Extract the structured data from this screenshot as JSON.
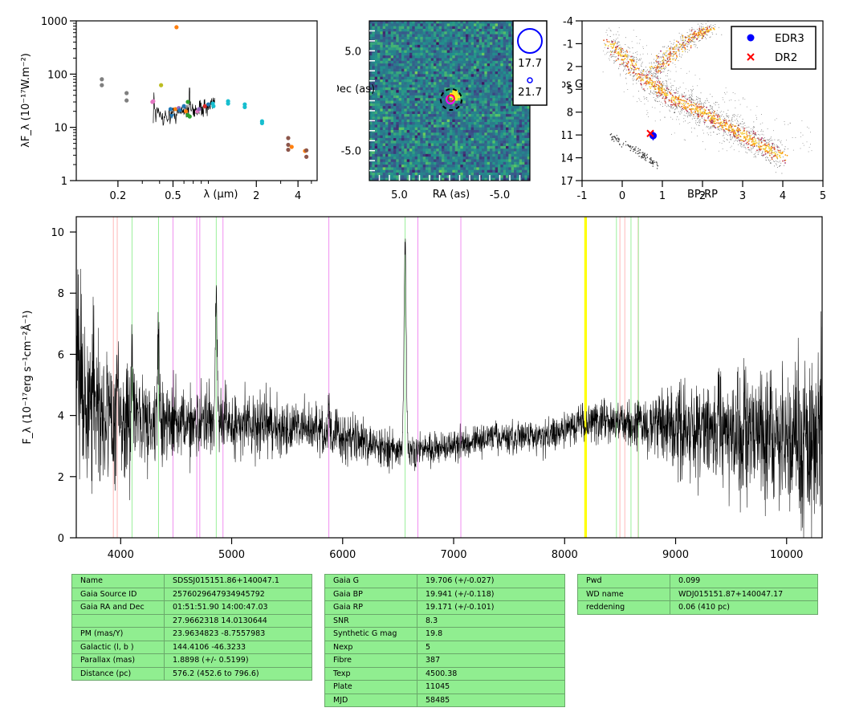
{
  "colors": {
    "sed_colors": [
      "#7f7f7f",
      "#bcbd22",
      "#ff7f0e",
      "#1f77b4",
      "#2ca02c",
      "#e377c2",
      "#9467bd",
      "#8c564b",
      "#17becf",
      "#d62728"
    ],
    "line_colors": {
      "pink": "#ffb0b0",
      "green": "#90ee90",
      "magenta": "#ee82ee",
      "yellow": "#ffff00"
    },
    "table_bg": "#90ee90",
    "edr3": "#0000ff",
    "dr2": "#ff0000",
    "target_circle": "#ff00ff"
  },
  "chart_data": [
    {
      "type": "scatter",
      "id": "sed",
      "xlabel": "λ (μm)",
      "ylabel": "λF_λ (10⁻¹⁷W.m⁻²)",
      "xscale": "log",
      "yscale": "log",
      "xlim": [
        0.1,
        5.5
      ],
      "ylim": [
        1,
        1000
      ],
      "xticks": [
        0.2,
        0.5,
        2,
        4
      ],
      "yticks": [
        1,
        10,
        100,
        1000
      ],
      "points": [
        {
          "x": 0.153,
          "y": 80,
          "c": 0
        },
        {
          "x": 0.153,
          "y": 62,
          "c": 0
        },
        {
          "x": 0.231,
          "y": 44,
          "c": 0
        },
        {
          "x": 0.231,
          "y": 32,
          "c": 0
        },
        {
          "x": 0.36,
          "y": 31,
          "c": 5
        },
        {
          "x": 0.355,
          "y": 30,
          "c": 5
        },
        {
          "x": 0.41,
          "y": 62,
          "c": 1
        },
        {
          "x": 0.48,
          "y": 22,
          "c": 3
        },
        {
          "x": 0.49,
          "y": 16,
          "c": 3
        },
        {
          "x": 0.52,
          "y": 22,
          "c": 2
        },
        {
          "x": 0.55,
          "y": 23,
          "c": 6
        },
        {
          "x": 0.56,
          "y": 21,
          "c": 3
        },
        {
          "x": 0.6,
          "y": 25,
          "c": 3
        },
        {
          "x": 0.62,
          "y": 20,
          "c": 2
        },
        {
          "x": 0.64,
          "y": 30,
          "c": 4
        },
        {
          "x": 0.64,
          "y": 17,
          "c": 4
        },
        {
          "x": 0.66,
          "y": 16,
          "c": 4
        },
        {
          "x": 0.75,
          "y": 20,
          "c": 5
        },
        {
          "x": 0.77,
          "y": 22,
          "c": 6
        },
        {
          "x": 0.85,
          "y": 25,
          "c": 9
        },
        {
          "x": 0.9,
          "y": 27,
          "c": 3
        },
        {
          "x": 0.97,
          "y": 28,
          "c": 8
        },
        {
          "x": 0.98,
          "y": 25,
          "c": 8
        },
        {
          "x": 1.25,
          "y": 31,
          "c": 8
        },
        {
          "x": 1.25,
          "y": 28,
          "c": 8
        },
        {
          "x": 1.65,
          "y": 27,
          "c": 8
        },
        {
          "x": 1.65,
          "y": 24,
          "c": 8
        },
        {
          "x": 2.2,
          "y": 13,
          "c": 8
        },
        {
          "x": 2.2,
          "y": 12,
          "c": 8
        },
        {
          "x": 3.4,
          "y": 6.3,
          "c": 7
        },
        {
          "x": 3.4,
          "y": 4.7,
          "c": 7
        },
        {
          "x": 3.4,
          "y": 3.8,
          "c": 7
        },
        {
          "x": 3.6,
          "y": 4.3,
          "c": 2
        },
        {
          "x": 4.5,
          "y": 3.6,
          "c": 2
        },
        {
          "x": 4.6,
          "y": 3.7,
          "c": 7
        },
        {
          "x": 4.6,
          "y": 2.8,
          "c": 7
        },
        {
          "x": 0.53,
          "y": 760,
          "c": 2
        }
      ],
      "spectrum_envelope": {
        "x": [
          0.36,
          0.4,
          0.45,
          0.5,
          0.55,
          0.6,
          0.65,
          0.7,
          0.75,
          0.8,
          0.85,
          0.9,
          0.95,
          1.0
        ],
        "y": [
          22,
          17,
          16,
          18,
          19,
          22,
          24,
          20,
          22,
          24,
          25,
          23,
          26,
          28
        ]
      }
    },
    {
      "type": "heatmap",
      "id": "image-cutout",
      "xlabel": "RA (as)",
      "ylabel": "Dec\n(as)",
      "xlim": [
        8,
        -8
      ],
      "ylim": [
        -8,
        8
      ],
      "xticks": [
        5.0,
        -5.0
      ],
      "yticks": [
        5.0,
        -5.0
      ],
      "source": {
        "x": -0.5,
        "y": 0.5
      },
      "legend": {
        "entries": [
          "17.7",
          "21.7"
        ]
      }
    },
    {
      "type": "scatter",
      "id": "hr-diagram",
      "xlabel": "BP-RP",
      "ylabel": "Abs\nG",
      "xlim": [
        -1,
        5
      ],
      "ylim": [
        17,
        -4
      ],
      "xticks": [
        -1,
        0,
        1,
        2,
        3,
        4,
        5
      ],
      "yticks": [
        -4,
        -1,
        2,
        5,
        8,
        11,
        14,
        17
      ],
      "main_sequence": {
        "x": [
          -0.3,
          0.2,
          0.5,
          0.8,
          1.2,
          1.6,
          2.0,
          2.5,
          3.0,
          3.5,
          4.0
        ],
        "y": [
          -1,
          1.5,
          3.5,
          4.5,
          6,
          7,
          8,
          9.5,
          11,
          12.5,
          14
        ]
      },
      "giant_branch": {
        "x": [
          0.8,
          1.0,
          1.2,
          1.5,
          1.8,
          2.2
        ],
        "y": [
          2.5,
          1.5,
          0.5,
          -1,
          -2,
          -3
        ]
      },
      "white_dwarf_sequence": {
        "x": [
          -0.3,
          0.0,
          0.3,
          0.6,
          0.9
        ],
        "y": [
          11,
          12,
          13,
          14,
          15
        ]
      },
      "series": [
        {
          "name": "EDR3",
          "x": 0.77,
          "y": 11.1,
          "marker": "circle",
          "yerr": 0.6
        },
        {
          "name": "DR2",
          "x": 0.7,
          "y": 10.8,
          "marker": "x"
        }
      ]
    },
    {
      "type": "line",
      "id": "spectrum",
      "xlabel": "",
      "ylabel": "F_λ (10⁻¹⁷erg s⁻¹cm⁻²Å⁻¹)",
      "xlim": [
        3600,
        10320
      ],
      "ylim": [
        0,
        10.5
      ],
      "xticks": [
        4000,
        5000,
        6000,
        7000,
        8000,
        9000,
        10000
      ],
      "yticks": [
        0,
        2,
        4,
        6,
        8,
        10
      ],
      "base_continuum": {
        "x": [
          3600,
          3700,
          3800,
          4000,
          4300,
          4600,
          4900,
          5200,
          5500,
          5800,
          6100,
          6400,
          6700,
          7000,
          7300,
          7600,
          7900,
          8100,
          8300,
          8500,
          8800,
          9100,
          9400,
          9700,
          10000,
          10300
        ],
        "y": [
          4.8,
          4.4,
          4.1,
          3.9,
          3.8,
          3.7,
          3.7,
          3.7,
          3.6,
          3.5,
          3.3,
          2.9,
          2.8,
          3.0,
          3.3,
          3.3,
          3.4,
          3.7,
          3.8,
          3.7,
          3.7,
          3.6,
          3.5,
          3.5,
          3.3,
          3.3
        ]
      },
      "noise": {
        "x": [
          3600,
          4500,
          5500,
          6500,
          7500,
          8500,
          9000,
          9500,
          10000,
          10320
        ],
        "y": [
          1.4,
          0.6,
          0.45,
          0.3,
          0.25,
          0.35,
          0.7,
          0.9,
          1.1,
          1.6
        ]
      },
      "emission_lines": [
        {
          "x": 3970,
          "h": 2.0,
          "w": 6
        },
        {
          "x": 4101,
          "h": 2.2,
          "w": 7
        },
        {
          "x": 4340,
          "h": 3.3,
          "w": 7
        },
        {
          "x": 4861,
          "h": 4.0,
          "w": 8
        },
        {
          "x": 5876,
          "h": 0.9,
          "w": 6
        },
        {
          "x": 6563,
          "h": 6.6,
          "w": 10
        }
      ],
      "vlines": [
        {
          "x": 3934,
          "c": "pink"
        },
        {
          "x": 3969,
          "c": "pink"
        },
        {
          "x": 4102,
          "c": "green"
        },
        {
          "x": 4341,
          "c": "green"
        },
        {
          "x": 4471,
          "c": "magenta"
        },
        {
          "x": 4686,
          "c": "magenta"
        },
        {
          "x": 4713,
          "c": "magenta"
        },
        {
          "x": 4861,
          "c": "green"
        },
        {
          "x": 4922,
          "c": "magenta"
        },
        {
          "x": 5876,
          "c": "magenta"
        },
        {
          "x": 6563,
          "c": "green"
        },
        {
          "x": 6678,
          "c": "magenta"
        },
        {
          "x": 7065,
          "c": "magenta"
        },
        {
          "x": 8183,
          "c": "yellow"
        },
        {
          "x": 8195,
          "c": "yellow"
        },
        {
          "x": 8467,
          "c": "green"
        },
        {
          "x": 8498,
          "c": "pink"
        },
        {
          "x": 8542,
          "c": "pink"
        },
        {
          "x": 8598,
          "c": "green"
        },
        {
          "x": 8662,
          "c": "pink"
        },
        {
          "x": 8665,
          "c": "green"
        }
      ]
    }
  ],
  "tables": {
    "t1": [
      [
        "Name",
        "SDSSJ015151.86+140047.1"
      ],
      [
        "Gaia Source ID",
        "2576029647934945792"
      ],
      [
        "Gaia RA and Dec",
        "01:51:51.90    14:00:47.03"
      ],
      [
        "",
        "27.9662318    14.0130644"
      ],
      [
        "PM (mas/Y)",
        "23.9634823    -8.7557983"
      ],
      [
        "Galactic (l, b )",
        "144.4106    -46.3233"
      ],
      [
        "Parallax (mas)",
        "1.8898 (+/- 0.5199)"
      ],
      [
        "Distance (pc)",
        "576.2 (452.6 to 796.6)"
      ]
    ],
    "t2": [
      [
        "Gaia G",
        "19.706 (+/-0.027)"
      ],
      [
        "Gaia BP",
        "19.941 (+/-0.118)"
      ],
      [
        "Gaia RP",
        "19.171 (+/-0.101)"
      ],
      [
        "SNR",
        "8.3"
      ],
      [
        "Synthetic G mag",
        "19.8"
      ],
      [
        "Nexp",
        "5"
      ],
      [
        "Fibre",
        "387"
      ],
      [
        "Texp",
        "4500.38"
      ],
      [
        "Plate",
        "11045"
      ],
      [
        "MJD",
        "58485"
      ]
    ],
    "t3": [
      [
        "Pwd",
        "0.099"
      ],
      [
        "WD name",
        "WDJ015151.87+140047.17"
      ],
      [
        "reddening",
        "0.06 (410 pc)"
      ]
    ]
  }
}
